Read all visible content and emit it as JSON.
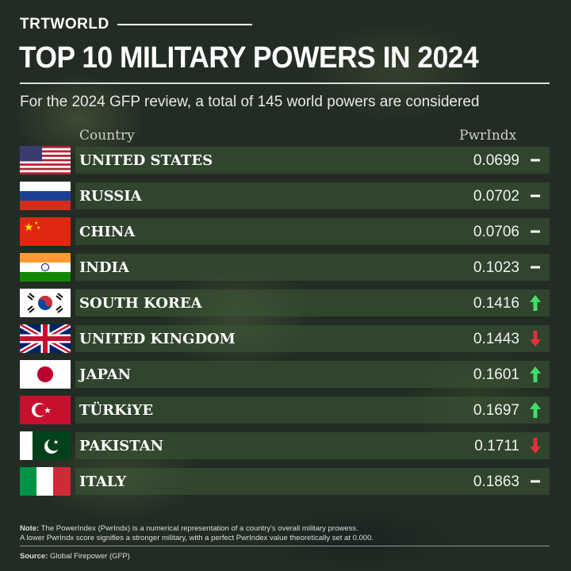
{
  "brand": "TRTWORLD",
  "title": "TOP 10 MILITARY POWERS IN 2024",
  "subtitle": "For the 2024 GFP review, a total of 145 world powers are considered",
  "colors": {
    "up": "#3ee06a",
    "down": "#e0303a",
    "neutral": "#ffffff",
    "row_bg": "#3c5a37"
  },
  "chart_data": {
    "type": "table",
    "title": "TOP 10 MILITARY POWERS IN 2024",
    "columns": [
      "Country",
      "PwrIndx"
    ],
    "rows": [
      {
        "country": "UNITED STATES",
        "flag": "us-flag",
        "pwrindx": "0.0699",
        "trend": "neutral"
      },
      {
        "country": "RUSSIA",
        "flag": "russia-flag",
        "pwrindx": "0.0702",
        "trend": "neutral"
      },
      {
        "country": "CHINA",
        "flag": "china-flag",
        "pwrindx": "0.0706",
        "trend": "neutral"
      },
      {
        "country": "INDIA",
        "flag": "india-flag",
        "pwrindx": "0.1023",
        "trend": "neutral"
      },
      {
        "country": "SOUTH KOREA",
        "flag": "south-korea-flag",
        "pwrindx": "0.1416",
        "trend": "up"
      },
      {
        "country": "UNITED KINGDOM",
        "flag": "uk-flag",
        "pwrindx": "0.1443",
        "trend": "down"
      },
      {
        "country": "JAPAN",
        "flag": "japan-flag",
        "pwrindx": "0.1601",
        "trend": "up"
      },
      {
        "country": "TÜRKiYE",
        "flag": "turkiye-flag",
        "pwrindx": "0.1697",
        "trend": "up"
      },
      {
        "country": "PAKISTAN",
        "flag": "pakistan-flag",
        "pwrindx": "0.1711",
        "trend": "down"
      },
      {
        "country": "ITALY",
        "flag": "italy-flag",
        "pwrindx": "0.1863",
        "trend": "neutral"
      }
    ]
  },
  "footer": {
    "note_label": "Note:",
    "note_line1": " The PowerIndex (PwrIndx) is a numerical representation of a country's overall military prowess.",
    "note_line2": "A lower PwrIndx score signifies a stronger military, with a perfect PwrIndex value theoretically set at 0.000.",
    "source_label": "Source:",
    "source": " Global Firepower (GFP)"
  }
}
